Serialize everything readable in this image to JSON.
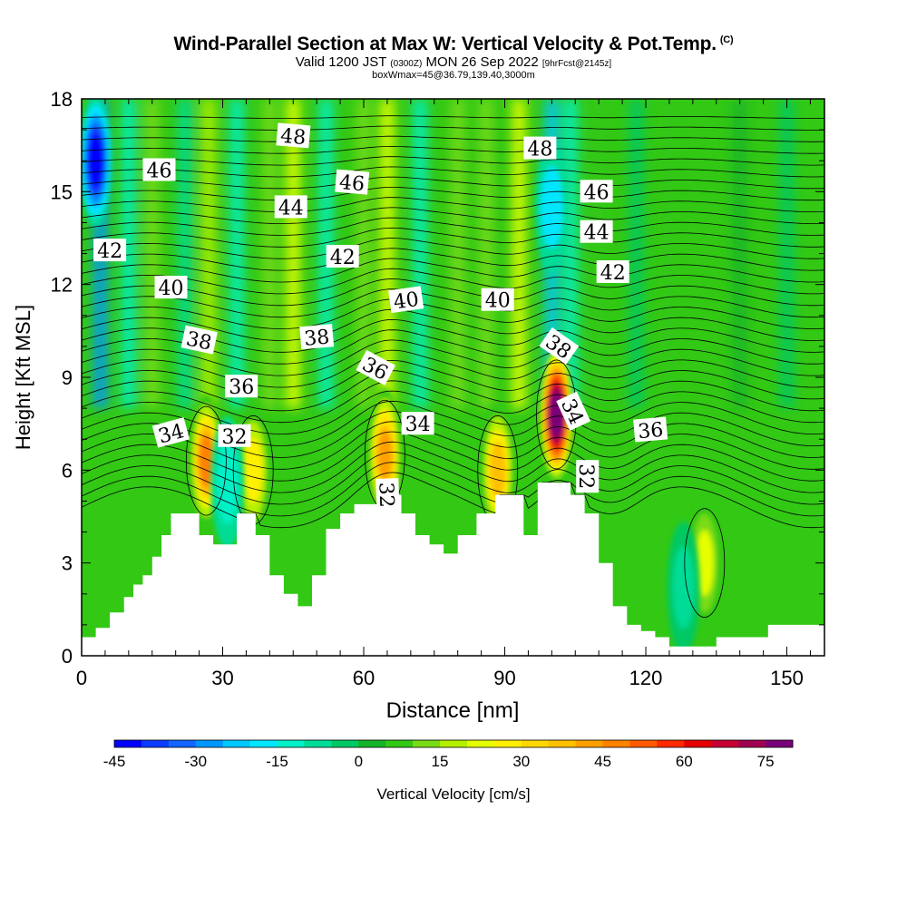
{
  "title": {
    "main": "Wind-Parallel Section at Max W: Vertical Velocity & Pot.Temp.",
    "copyright": "(C)",
    "valid_prefix": "Valid 1200 JST",
    "valid_utc": "(0300Z)",
    "valid_date": "MON 26 Sep 2022",
    "forecast": "[9hrFcst@2145z]",
    "box": "boxWmax=45@36.79,139.40,3000m"
  },
  "chart_data": {
    "type": "heatmap",
    "xlabel": "Distance [nm]",
    "ylabel": "Height [Kft MSL]",
    "xlim": [
      0,
      158
    ],
    "ylim": [
      0,
      18
    ],
    "x_ticks": [
      0,
      30,
      60,
      90,
      120,
      150
    ],
    "y_ticks": [
      0,
      3,
      6,
      9,
      12,
      15,
      18
    ],
    "colorbar": {
      "label": "Vertical Velocity [cm/s]",
      "ticks": [
        -45,
        -30,
        -15,
        0,
        15,
        30,
        45,
        60,
        75
      ],
      "levels": [
        -45,
        -40,
        -35,
        -30,
        -25,
        -20,
        -15,
        -10,
        -5,
        0,
        5,
        10,
        15,
        20,
        25,
        30,
        35,
        40,
        45,
        50,
        55,
        60,
        65,
        70,
        75,
        80
      ],
      "colors": [
        "#0000ff",
        "#0a3cff",
        "#1464ff",
        "#0096ff",
        "#00c8ff",
        "#00e6ff",
        "#00f0c8",
        "#00dc96",
        "#00c864",
        "#14b428",
        "#32c814",
        "#78dc14",
        "#b4f000",
        "#e6ff00",
        "#fff000",
        "#ffd700",
        "#ffc000",
        "#ffa000",
        "#ff8200",
        "#ff5a00",
        "#ff2a00",
        "#e60000",
        "#c80032",
        "#a00050",
        "#780078"
      ]
    },
    "terrain_kft": [
      [
        0,
        0.6
      ],
      [
        3,
        0.6
      ],
      [
        3,
        0.9
      ],
      [
        6,
        0.9
      ],
      [
        6,
        1.4
      ],
      [
        9,
        1.4
      ],
      [
        9,
        1.9
      ],
      [
        11,
        1.9
      ],
      [
        11,
        2.3
      ],
      [
        13,
        2.3
      ],
      [
        13,
        2.6
      ],
      [
        15,
        2.6
      ],
      [
        15,
        3.2
      ],
      [
        17,
        3.2
      ],
      [
        17,
        3.9
      ],
      [
        19,
        3.9
      ],
      [
        19,
        4.6
      ],
      [
        25,
        4.6
      ],
      [
        25,
        3.9
      ],
      [
        28,
        3.9
      ],
      [
        28,
        3.6
      ],
      [
        33,
        3.6
      ],
      [
        33,
        4.6
      ],
      [
        37,
        4.6
      ],
      [
        37,
        3.9
      ],
      [
        40,
        3.9
      ],
      [
        40,
        2.6
      ],
      [
        43,
        2.6
      ],
      [
        43,
        2.0
      ],
      [
        46,
        2.0
      ],
      [
        46,
        1.6
      ],
      [
        49,
        1.6
      ],
      [
        49,
        2.6
      ],
      [
        52,
        2.6
      ],
      [
        52,
        4.1
      ],
      [
        55,
        4.1
      ],
      [
        55,
        4.6
      ],
      [
        58,
        4.6
      ],
      [
        58,
        4.9
      ],
      [
        64,
        4.9
      ],
      [
        64,
        5.2
      ],
      [
        68,
        5.2
      ],
      [
        68,
        4.6
      ],
      [
        71,
        4.6
      ],
      [
        71,
        3.9
      ],
      [
        74,
        3.9
      ],
      [
        74,
        3.6
      ],
      [
        77,
        3.6
      ],
      [
        77,
        3.3
      ],
      [
        80,
        3.3
      ],
      [
        80,
        3.9
      ],
      [
        84,
        3.9
      ],
      [
        84,
        4.6
      ],
      [
        88,
        4.6
      ],
      [
        88,
        5.2
      ],
      [
        94,
        5.2
      ],
      [
        94,
        3.9
      ],
      [
        97,
        3.9
      ],
      [
        97,
        5.6
      ],
      [
        104,
        5.6
      ],
      [
        104,
        5.2
      ],
      [
        107,
        5.2
      ],
      [
        107,
        4.6
      ],
      [
        110,
        4.6
      ],
      [
        110,
        3.0
      ],
      [
        113,
        3.0
      ],
      [
        113,
        1.6
      ],
      [
        116,
        1.6
      ],
      [
        116,
        1.0
      ],
      [
        119,
        1.0
      ],
      [
        119,
        0.8
      ],
      [
        122,
        0.8
      ],
      [
        122,
        0.6
      ],
      [
        125,
        0.6
      ],
      [
        125,
        0.3
      ],
      [
        135,
        0.3
      ],
      [
        135,
        0.6
      ],
      [
        146,
        0.6
      ],
      [
        146,
        1.0
      ],
      [
        158,
        1.0
      ]
    ],
    "w_cells": [
      {
        "x": 26.5,
        "y": 6.3,
        "w": 48
      },
      {
        "x": 36.5,
        "y": 6.0,
        "w": 28
      },
      {
        "x": 64.5,
        "y": 6.5,
        "w": 42
      },
      {
        "x": 88.5,
        "y": 6.0,
        "w": 38
      },
      {
        "x": 101.0,
        "y": 7.8,
        "w": 80
      },
      {
        "x": 132.5,
        "y": 3.0,
        "w": 22
      },
      {
        "x": 31.0,
        "y": 5.6,
        "w": -15
      },
      {
        "x": 3.0,
        "y": 16.0,
        "w": -45
      },
      {
        "x": 100.0,
        "y": 14.5,
        "w": -20
      },
      {
        "x": 128.0,
        "y": 2.2,
        "w": -10
      }
    ],
    "theta_levels": [
      32,
      34,
      36,
      38,
      40,
      42,
      44,
      46,
      48
    ],
    "contour_labels": [
      {
        "text": "48",
        "x": 45.0,
        "y": 16.8,
        "rot": 5
      },
      {
        "text": "48",
        "x": 97.5,
        "y": 16.4,
        "rot": 0
      },
      {
        "text": "46",
        "x": 16.5,
        "y": 15.7,
        "rot": 0
      },
      {
        "text": "46",
        "x": 57.5,
        "y": 15.3,
        "rot": 5
      },
      {
        "text": "46",
        "x": 109.5,
        "y": 15.0,
        "rot": 0
      },
      {
        "text": "44",
        "x": 44.5,
        "y": 14.5,
        "rot": 0
      },
      {
        "text": "44",
        "x": 109.5,
        "y": 13.7,
        "rot": 0
      },
      {
        "text": "42",
        "x": 6.0,
        "y": 13.1,
        "rot": 0
      },
      {
        "text": "42",
        "x": 55.5,
        "y": 12.9,
        "rot": 0
      },
      {
        "text": "42",
        "x": 113.0,
        "y": 12.4,
        "rot": 0
      },
      {
        "text": "40",
        "x": 19.0,
        "y": 11.9,
        "rot": 0
      },
      {
        "text": "40",
        "x": 69.0,
        "y": 11.5,
        "rot": -8
      },
      {
        "text": "40",
        "x": 88.5,
        "y": 11.5,
        "rot": 0
      },
      {
        "text": "38",
        "x": 25.0,
        "y": 10.2,
        "rot": 12
      },
      {
        "text": "38",
        "x": 50.0,
        "y": 10.3,
        "rot": -5
      },
      {
        "text": "38",
        "x": 101.5,
        "y": 10.0,
        "rot": 35
      },
      {
        "text": "36",
        "x": 34.0,
        "y": 8.7,
        "rot": 0
      },
      {
        "text": "36",
        "x": 62.5,
        "y": 9.3,
        "rot": 28
      },
      {
        "text": "36",
        "x": 121.0,
        "y": 7.3,
        "rot": -5
      },
      {
        "text": "34",
        "x": 19.0,
        "y": 7.2,
        "rot": -15
      },
      {
        "text": "34",
        "x": 71.5,
        "y": 7.5,
        "rot": 0
      },
      {
        "text": "34",
        "x": 104.5,
        "y": 7.9,
        "rot": 65
      },
      {
        "text": "32",
        "x": 32.5,
        "y": 7.1,
        "rot": 0
      },
      {
        "text": "32",
        "x": 65.0,
        "y": 5.2,
        "rot": 88
      },
      {
        "text": "32",
        "x": 107.5,
        "y": 5.8,
        "rot": 90
      }
    ]
  }
}
